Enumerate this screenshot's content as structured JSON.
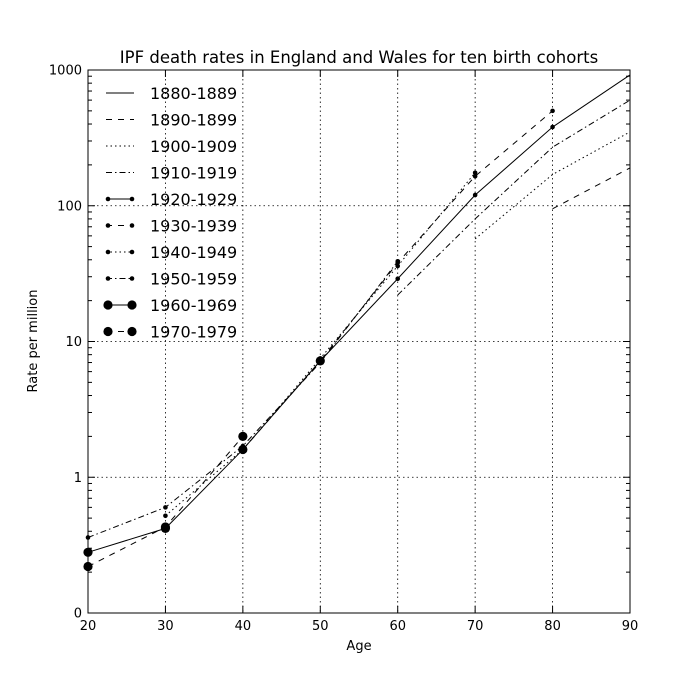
{
  "chart_data": {
    "type": "line",
    "title": "IPF death rates in England and Wales for ten birth cohorts",
    "xlabel": "Age",
    "ylabel": "Rate per million",
    "xlim": [
      20,
      90
    ],
    "x_ticks": [
      20,
      30,
      40,
      50,
      60,
      70,
      80,
      90
    ],
    "y_scale": "log",
    "y_ticks": [
      {
        "value": 0.1,
        "label": "0"
      },
      {
        "value": 1,
        "label": "1"
      },
      {
        "value": 10,
        "label": "10"
      },
      {
        "value": 100,
        "label": "100"
      },
      {
        "value": 1000,
        "label": "1000"
      }
    ],
    "ylim": [
      0.1,
      1000
    ],
    "grid": true,
    "legend_position": "top-left",
    "series": [
      {
        "name": "1880-1889",
        "dash": "solid",
        "marker": "none",
        "points": [
          [
            80,
            380
          ],
          [
            90,
            920
          ]
        ]
      },
      {
        "name": "1890-1899",
        "dash": "dashed",
        "marker": "none",
        "points": [
          [
            80,
            95
          ],
          [
            90,
            190
          ]
        ]
      },
      {
        "name": "1900-1909",
        "dash": "dotted",
        "marker": "none",
        "points": [
          [
            70,
            57
          ],
          [
            80,
            170
          ],
          [
            90,
            350
          ]
        ]
      },
      {
        "name": "1910-1919",
        "dash": "dashdot",
        "marker": "none",
        "points": [
          [
            60,
            22
          ],
          [
            70,
            80
          ],
          [
            80,
            270
          ],
          [
            90,
            600
          ]
        ]
      },
      {
        "name": "1920-1929",
        "dash": "solid",
        "marker": "small",
        "points": [
          [
            50,
            7.2
          ],
          [
            60,
            29
          ],
          [
            70,
            120
          ],
          [
            80,
            380
          ]
        ]
      },
      {
        "name": "1930-1939",
        "dash": "dashed",
        "marker": "small",
        "points": [
          [
            40,
            1.6
          ],
          [
            50,
            7.2
          ],
          [
            60,
            38
          ],
          [
            70,
            165
          ],
          [
            80,
            500
          ]
        ]
      },
      {
        "name": "1940-1949",
        "dash": "dotted",
        "marker": "small",
        "points": [
          [
            30,
            0.52
          ],
          [
            40,
            1.6
          ],
          [
            50,
            7.5
          ],
          [
            60,
            36
          ],
          [
            70,
            175
          ]
        ]
      },
      {
        "name": "1950-1959",
        "dash": "dashdot",
        "marker": "small",
        "points": [
          [
            20,
            0.36
          ],
          [
            30,
            0.6
          ],
          [
            40,
            1.7
          ],
          [
            50,
            7.0
          ],
          [
            60,
            39
          ]
        ]
      },
      {
        "name": "1960-1969",
        "dash": "solid",
        "marker": "large",
        "points": [
          [
            20,
            0.28
          ],
          [
            30,
            0.42
          ],
          [
            40,
            1.6
          ],
          [
            50,
            7.2
          ]
        ]
      },
      {
        "name": "1970-1979",
        "dash": "dashed",
        "marker": "large",
        "points": [
          [
            20,
            0.22
          ],
          [
            30,
            0.43
          ],
          [
            40,
            2.0
          ]
        ]
      }
    ]
  }
}
